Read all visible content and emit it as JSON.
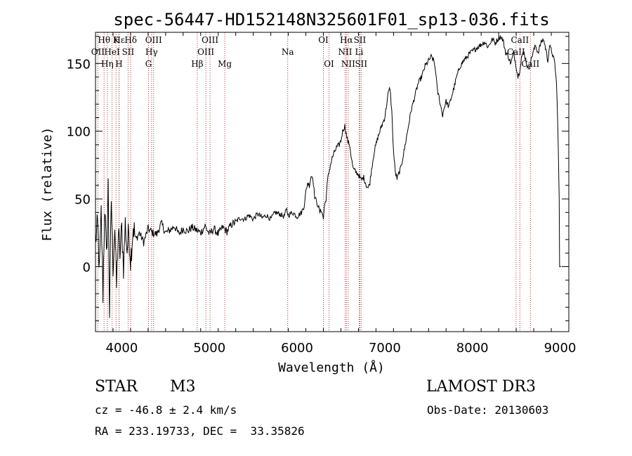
{
  "chart_data": {
    "type": "line",
    "title": "spec-56447-HD152148N325601F01_sp13-036.fits",
    "xlabel": "Wavelength (Å)",
    "ylabel": "Flux (relative)",
    "xlim": [
      3700,
      9100
    ],
    "ylim": [
      -48,
      173
    ],
    "x_ticks": [
      4000,
      5000,
      6000,
      7000,
      8000,
      9000
    ],
    "y_ticks": [
      0,
      50,
      100,
      150
    ],
    "x_tick_labels": [
      "4000",
      "5000",
      "6000",
      "7000",
      "8000",
      "9000"
    ],
    "y_tick_labels": [
      "0",
      "50",
      "100",
      "150"
    ],
    "series": [
      {
        "name": "flux",
        "points": [
          [
            3700,
            20
          ],
          [
            3725,
            30
          ],
          [
            3745,
            -5
          ],
          [
            3765,
            40
          ],
          [
            3785,
            -20
          ],
          [
            3805,
            45
          ],
          [
            3825,
            5
          ],
          [
            3845,
            60
          ],
          [
            3860,
            -35
          ],
          [
            3880,
            50
          ],
          [
            3900,
            0
          ],
          [
            3920,
            30
          ],
          [
            3940,
            -15
          ],
          [
            3960,
            25
          ],
          [
            3980,
            10
          ],
          [
            4000,
            28
          ],
          [
            4020,
            0
          ],
          [
            4040,
            32
          ],
          [
            4060,
            12
          ],
          [
            4080,
            27
          ],
          [
            4100,
            5
          ],
          [
            4130,
            30
          ],
          [
            4160,
            20
          ],
          [
            4200,
            25
          ],
          [
            4250,
            18
          ],
          [
            4300,
            28
          ],
          [
            4350,
            25
          ],
          [
            4400,
            24
          ],
          [
            4450,
            32
          ],
          [
            4500,
            25
          ],
          [
            4550,
            27
          ],
          [
            4600,
            30
          ],
          [
            4650,
            24
          ],
          [
            4700,
            28
          ],
          [
            4750,
            26
          ],
          [
            4800,
            29
          ],
          [
            4850,
            27
          ],
          [
            4900,
            25
          ],
          [
            4950,
            30
          ],
          [
            5000,
            24
          ],
          [
            5050,
            28
          ],
          [
            5100,
            24
          ],
          [
            5150,
            29
          ],
          [
            5200,
            26
          ],
          [
            5250,
            31
          ],
          [
            5300,
            33
          ],
          [
            5350,
            36
          ],
          [
            5400,
            35
          ],
          [
            5450,
            38
          ],
          [
            5500,
            35
          ],
          [
            5550,
            39
          ],
          [
            5600,
            36
          ],
          [
            5650,
            38
          ],
          [
            5700,
            35
          ],
          [
            5750,
            40
          ],
          [
            5800,
            39
          ],
          [
            5850,
            37
          ],
          [
            5880,
            42
          ],
          [
            5900,
            38
          ],
          [
            5950,
            40
          ],
          [
            6000,
            37
          ],
          [
            6050,
            40
          ],
          [
            6080,
            45
          ],
          [
            6100,
            55
          ],
          [
            6120,
            62
          ],
          [
            6140,
            60
          ],
          [
            6160,
            67
          ],
          [
            6180,
            66
          ],
          [
            6200,
            52
          ],
          [
            6220,
            48
          ],
          [
            6240,
            45
          ],
          [
            6260,
            40
          ],
          [
            6280,
            42
          ],
          [
            6300,
            35
          ],
          [
            6310,
            44
          ],
          [
            6330,
            50
          ],
          [
            6350,
            65
          ],
          [
            6380,
            75
          ],
          [
            6400,
            80
          ],
          [
            6430,
            85
          ],
          [
            6450,
            88
          ],
          [
            6480,
            90
          ],
          [
            6500,
            93
          ],
          [
            6520,
            100
          ],
          [
            6545,
            104
          ],
          [
            6560,
            98
          ],
          [
            6580,
            92
          ],
          [
            6600,
            90
          ],
          [
            6620,
            80
          ],
          [
            6640,
            72
          ],
          [
            6670,
            70
          ],
          [
            6700,
            68
          ],
          [
            6730,
            64
          ],
          [
            6760,
            66
          ],
          [
            6790,
            60
          ],
          [
            6810,
            58
          ],
          [
            6830,
            62
          ],
          [
            6850,
            72
          ],
          [
            6880,
            85
          ],
          [
            6920,
            95
          ],
          [
            6960,
            103
          ],
          [
            7000,
            110
          ],
          [
            7040,
            128
          ],
          [
            7060,
            132
          ],
          [
            7080,
            115
          ],
          [
            7100,
            85
          ],
          [
            7120,
            70
          ],
          [
            7140,
            65
          ],
          [
            7180,
            72
          ],
          [
            7220,
            85
          ],
          [
            7260,
            100
          ],
          [
            7300,
            115
          ],
          [
            7340,
            125
          ],
          [
            7380,
            135
          ],
          [
            7420,
            140
          ],
          [
            7460,
            148
          ],
          [
            7500,
            152
          ],
          [
            7530,
            155
          ],
          [
            7560,
            152
          ],
          [
            7580,
            145
          ],
          [
            7600,
            130
          ],
          [
            7620,
            125
          ],
          [
            7640,
            118
          ],
          [
            7660,
            112
          ],
          [
            7680,
            118
          ],
          [
            7700,
            122
          ],
          [
            7730,
            118
          ],
          [
            7760,
            125
          ],
          [
            7790,
            132
          ],
          [
            7820,
            140
          ],
          [
            7860,
            148
          ],
          [
            7900,
            152
          ],
          [
            7940,
            155
          ],
          [
            7980,
            158
          ],
          [
            8020,
            160
          ],
          [
            8060,
            162
          ],
          [
            8100,
            164
          ],
          [
            8140,
            166
          ],
          [
            8180,
            162
          ],
          [
            8200,
            165
          ],
          [
            8230,
            168
          ],
          [
            8260,
            165
          ],
          [
            8290,
            168
          ],
          [
            8320,
            170
          ],
          [
            8350,
            167
          ],
          [
            8380,
            158
          ],
          [
            8410,
            155
          ],
          [
            8440,
            150
          ],
          [
            8470,
            158
          ],
          [
            8500,
            148
          ],
          [
            8520,
            140
          ],
          [
            8540,
            145
          ],
          [
            8560,
            155
          ],
          [
            8590,
            158
          ],
          [
            8620,
            150
          ],
          [
            8640,
            145
          ],
          [
            8660,
            150
          ],
          [
            8690,
            158
          ],
          [
            8720,
            163
          ],
          [
            8750,
            158
          ],
          [
            8780,
            165
          ],
          [
            8810,
            168
          ],
          [
            8840,
            160
          ],
          [
            8860,
            152
          ],
          [
            8880,
            163
          ],
          [
            8910,
            158
          ],
          [
            8940,
            150
          ],
          [
            8960,
            135
          ],
          [
            8980,
            90
          ],
          [
            8990,
            50
          ],
          [
            8995,
            0
          ]
        ]
      }
    ],
    "lines": [
      {
        "name": "Hθ",
        "w": 3798,
        "row": 0
      },
      {
        "name": "OII",
        "w": 3727,
        "row": 1
      },
      {
        "name": "Hη",
        "w": 3835,
        "row": 2
      },
      {
        "name": "HeI",
        "w": 3889,
        "row": 1
      },
      {
        "name": "K",
        "w": 3934,
        "row": 0
      },
      {
        "name": "SII",
        "w": 4072,
        "row": 1
      },
      {
        "name": "H",
        "w": 3968,
        "row": 2
      },
      {
        "name": "Hδ",
        "w": 4102,
        "row": 0
      },
      {
        "name": "Hε",
        "w": 3970,
        "row": -1
      },
      {
        "name": "OIII",
        "w": 4363,
        "row": 0
      },
      {
        "name": "Hγ",
        "w": 4340,
        "row": 1
      },
      {
        "name": "G",
        "w": 4305,
        "row": 2
      },
      {
        "name": "Hβ",
        "w": 4861,
        "row": 2
      },
      {
        "name": "OIII",
        "w": 4959,
        "row": 1
      },
      {
        "name": "OIII",
        "w": 5007,
        "row": 0
      },
      {
        "name": "Mg",
        "w": 5175,
        "row": 2
      },
      {
        "name": "Na",
        "w": 5893,
        "row": 1
      },
      {
        "name": "OI",
        "w": 6300,
        "row": 0
      },
      {
        "name": "OI",
        "w": 6364,
        "row": 2
      },
      {
        "name": "NII",
        "w": 6548,
        "row": 1
      },
      {
        "name": "Hα",
        "w": 6563,
        "row": 0
      },
      {
        "name": "NII",
        "w": 6583,
        "row": 2
      },
      {
        "name": "Li",
        "w": 6708,
        "row": 1
      },
      {
        "name": "SII",
        "w": 6716,
        "row": 0
      },
      {
        "name": "SII",
        "w": 6731,
        "row": 2
      },
      {
        "name": "CaII",
        "w": 8498,
        "row": 1
      },
      {
        "name": "CaII",
        "w": 8542,
        "row": 0
      },
      {
        "name": "CaII",
        "w": 8662,
        "row": 2
      }
    ]
  },
  "info": {
    "object_class": "STAR",
    "subclass": "M3",
    "survey": "LAMOST DR3",
    "cz": "cz = -46.8 ± 2.4 km/s",
    "obs_date": "Obs-Date: 20130603",
    "coords": "RA = 233.19733, DEC =  33.35826"
  },
  "colors": {
    "line_marker": "#b03030",
    "spectrum": "#000000"
  }
}
